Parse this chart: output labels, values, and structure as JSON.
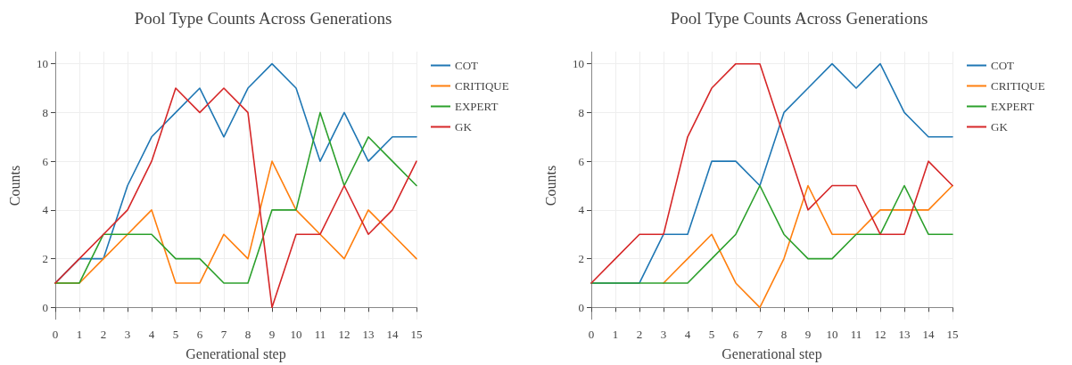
{
  "chart_data": [
    {
      "type": "line",
      "title": "Pool Type Counts Across Generations",
      "xlabel": "Generational step",
      "ylabel": "Counts",
      "x": [
        0,
        1,
        2,
        3,
        4,
        5,
        6,
        7,
        8,
        9,
        10,
        11,
        12,
        13,
        14,
        15
      ],
      "xlim": [
        0,
        15
      ],
      "xticks": [
        0,
        1,
        2,
        3,
        4,
        5,
        6,
        7,
        8,
        9,
        10,
        11,
        12,
        13,
        14,
        15
      ],
      "ylim": [
        -0.5,
        10.5
      ],
      "yticks": [
        0,
        2,
        4,
        6,
        8,
        10
      ],
      "grid": true,
      "legend": "top right",
      "marker": "none",
      "line_style": "solid",
      "series": [
        {
          "name": "COT",
          "color": "#1f77b4",
          "values": [
            1,
            2,
            2,
            5,
            7,
            8,
            9,
            7,
            9,
            10,
            9,
            6,
            8,
            6,
            7,
            7
          ]
        },
        {
          "name": "CRITIQUE",
          "color": "#ff7f0e",
          "values": [
            1,
            1,
            2,
            3,
            4,
            1,
            1,
            3,
            2,
            6,
            4,
            3,
            2,
            4,
            3,
            2
          ]
        },
        {
          "name": "EXPERT",
          "color": "#2ca02c",
          "values": [
            1,
            1,
            3,
            3,
            3,
            2,
            2,
            1,
            1,
            4,
            4,
            8,
            5,
            7,
            6,
            5
          ]
        },
        {
          "name": "GK",
          "color": "#d62728",
          "values": [
            1,
            2,
            3,
            4,
            6,
            9,
            8,
            9,
            8,
            0,
            3,
            3,
            5,
            3,
            4,
            6
          ]
        }
      ]
    },
    {
      "type": "line",
      "title": "Pool Type Counts Across Generations",
      "xlabel": "Generational step",
      "ylabel": "Counts",
      "x": [
        0,
        1,
        2,
        3,
        4,
        5,
        6,
        7,
        8,
        9,
        10,
        11,
        12,
        13,
        14,
        15
      ],
      "xlim": [
        0,
        15
      ],
      "xticks": [
        0,
        1,
        2,
        3,
        4,
        5,
        6,
        7,
        8,
        9,
        10,
        11,
        12,
        13,
        14,
        15
      ],
      "ylim": [
        -0.5,
        10.5
      ],
      "yticks": [
        0,
        2,
        4,
        6,
        8,
        10
      ],
      "grid": true,
      "legend": "top right",
      "marker": "none",
      "line_style": "solid",
      "series": [
        {
          "name": "COT",
          "color": "#1f77b4",
          "values": [
            1,
            1,
            1,
            3,
            3,
            6,
            6,
            5,
            8,
            9,
            10,
            9,
            10,
            8,
            7,
            7
          ]
        },
        {
          "name": "CRITIQUE",
          "color": "#ff7f0e",
          "values": [
            null,
            null,
            null,
            1,
            2,
            3,
            1,
            0,
            2,
            5,
            3,
            3,
            4,
            4,
            4,
            5
          ]
        },
        {
          "name": "EXPERT",
          "color": "#2ca02c",
          "values": [
            1,
            1,
            1,
            1,
            1,
            2,
            3,
            5,
            3,
            2,
            2,
            3,
            3,
            5,
            3,
            3
          ]
        },
        {
          "name": "GK",
          "color": "#d62728",
          "values": [
            1,
            2,
            3,
            3,
            7,
            9,
            10,
            10,
            7,
            4,
            5,
            5,
            3,
            3,
            6,
            5
          ]
        }
      ]
    }
  ]
}
